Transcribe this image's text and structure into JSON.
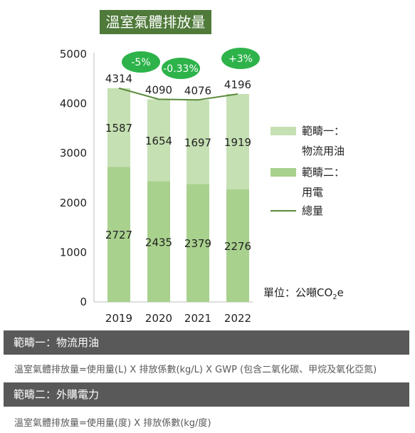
{
  "title": "溫室氣體排放量",
  "unit_label": {
    "prefix": "單位：公噸CO",
    "sub": "2",
    "suffix": "e"
  },
  "legend": {
    "scope1_line1": "範疇一：",
    "scope1_line2": "物流用油",
    "scope2_line1": "範疇二：",
    "scope2_line2": "用電",
    "total": "總量"
  },
  "colors": {
    "scope1": "#c5e0b3",
    "scope2": "#a9d18e",
    "total_line": "#5a8a3c",
    "badge": "#2db34a",
    "title_bg": "#4f7a3a",
    "band_bg": "#595959"
  },
  "chart_data": {
    "type": "bar",
    "stacked": true,
    "categories": [
      "2019",
      "2020",
      "2021",
      "2022"
    ],
    "series": [
      {
        "name": "範疇二：用電",
        "values": [
          2727,
          2435,
          2379,
          2276
        ]
      },
      {
        "name": "範疇一：物流用油",
        "values": [
          1587,
          1654,
          1697,
          1919
        ]
      },
      {
        "name": "總量",
        "type": "line",
        "values": [
          4314,
          4090,
          4076,
          4196
        ]
      }
    ],
    "change_badges": [
      "-5%",
      "-0.33%",
      "+3%"
    ],
    "ylim": [
      0,
      5000
    ],
    "yticks": [
      0,
      1000,
      2000,
      3000,
      4000,
      5000
    ],
    "grid": false,
    "legend_position": "right"
  },
  "sections": [
    {
      "header": "範疇一：物流用油",
      "formula": "溫室氣體排放量=使用量(L) X 排放係數(kg/L) X GWP (包含二氧化碳、甲烷及氧化亞氮)"
    },
    {
      "header": "範疇二：外購電力",
      "formula": "溫室氣體排放量=使用量(度) X 排放係數(kg/度)"
    }
  ]
}
